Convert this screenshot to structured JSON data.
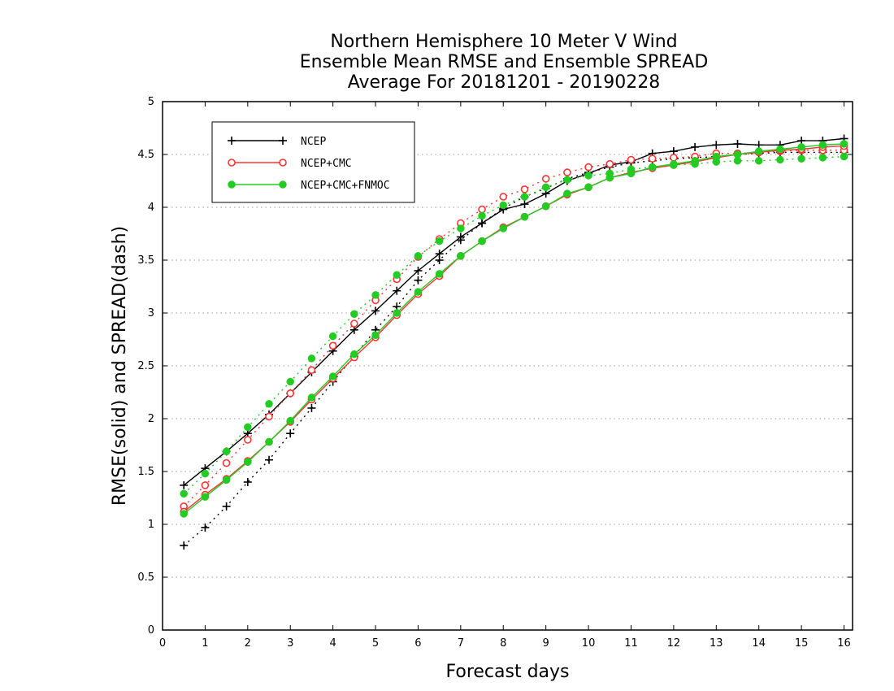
{
  "chart_data": {
    "type": "line",
    "title": [
      "Northern Hemisphere 10 Meter V Wind",
      "Ensemble Mean RMSE and Ensemble SPREAD",
      "Average For 20181201 - 20190228"
    ],
    "xlabel": "Forecast days",
    "ylabel": "RMSE(solid) and SPREAD(dash)",
    "xlim": [
      0,
      16.2
    ],
    "ylim": [
      0,
      5
    ],
    "xticks": [
      0,
      1,
      2,
      3,
      4,
      5,
      6,
      7,
      8,
      9,
      10,
      11,
      12,
      13,
      14,
      15,
      16
    ],
    "yticks": [
      0,
      0.5,
      1,
      1.5,
      2,
      2.5,
      3,
      3.5,
      4,
      4.5,
      5
    ],
    "ytick_labels": [
      "0",
      "0.5",
      "1",
      "1.5",
      "2",
      "2.5",
      "3",
      "3.5",
      "4",
      "4.5",
      "5"
    ],
    "grid": "horizontal dotted",
    "legend_position": "top-left",
    "x": [
      0.5,
      1,
      1.5,
      2,
      2.5,
      3,
      3.5,
      4,
      4.5,
      5,
      5.5,
      6,
      6.5,
      7,
      7.5,
      8,
      8.5,
      9,
      9.5,
      10,
      10.5,
      11,
      11.5,
      12,
      12.5,
      13,
      13.5,
      14,
      14.5,
      15,
      15.5,
      16
    ],
    "series": [
      {
        "name": "NCEP",
        "color": "#000000",
        "marker": "plus",
        "rmse": [
          1.37,
          1.53,
          1.69,
          1.86,
          2.04,
          2.24,
          2.44,
          2.64,
          2.84,
          3.02,
          3.21,
          3.4,
          3.56,
          3.72,
          3.85,
          3.98,
          4.03,
          4.13,
          4.25,
          4.32,
          4.4,
          4.43,
          4.51,
          4.53,
          4.57,
          4.59,
          4.6,
          4.59,
          4.59,
          4.63,
          4.63,
          4.65
        ],
        "spread": [
          0.8,
          0.97,
          1.17,
          1.4,
          1.61,
          1.86,
          2.1,
          2.35,
          2.59,
          2.84,
          3.06,
          3.31,
          3.5,
          3.69,
          3.85,
          3.99,
          4.1,
          4.18,
          4.27,
          4.33,
          4.38,
          4.42,
          4.44,
          4.46,
          4.47,
          4.48,
          4.5,
          4.51,
          4.52,
          4.52,
          4.52,
          4.52
        ]
      },
      {
        "name": "NCEP+CMC",
        "color": "#ff3333",
        "marker": "open-circle",
        "rmse": [
          1.12,
          1.28,
          1.43,
          1.6,
          1.78,
          1.97,
          2.18,
          2.38,
          2.58,
          2.77,
          2.98,
          3.18,
          3.35,
          3.54,
          3.68,
          3.81,
          3.91,
          4.01,
          4.12,
          4.19,
          4.28,
          4.33,
          4.37,
          4.4,
          4.43,
          4.47,
          4.5,
          4.52,
          4.54,
          4.55,
          4.57,
          4.58
        ],
        "spread": [
          1.17,
          1.37,
          1.58,
          1.8,
          2.02,
          2.24,
          2.46,
          2.69,
          2.9,
          3.12,
          3.32,
          3.53,
          3.7,
          3.85,
          3.98,
          4.1,
          4.17,
          4.27,
          4.33,
          4.38,
          4.41,
          4.45,
          4.46,
          4.47,
          4.48,
          4.51,
          4.51,
          4.52,
          4.53,
          4.54,
          4.54,
          4.54
        ]
      },
      {
        "name": "NCEP+CMC+FNMOC",
        "color": "#22cc22",
        "marker": "filled-circle",
        "rmse": [
          1.1,
          1.26,
          1.42,
          1.59,
          1.78,
          1.98,
          2.2,
          2.4,
          2.61,
          2.79,
          3.0,
          3.2,
          3.37,
          3.54,
          3.68,
          3.8,
          3.91,
          4.01,
          4.13,
          4.19,
          4.28,
          4.32,
          4.38,
          4.41,
          4.44,
          4.48,
          4.5,
          4.53,
          4.55,
          4.57,
          4.59,
          4.6
        ],
        "spread": [
          1.29,
          1.48,
          1.69,
          1.92,
          2.14,
          2.35,
          2.57,
          2.78,
          2.99,
          3.17,
          3.36,
          3.54,
          3.68,
          3.8,
          3.92,
          4.02,
          4.1,
          4.19,
          4.26,
          4.3,
          4.32,
          4.36,
          4.38,
          4.4,
          4.41,
          4.43,
          4.44,
          4.44,
          4.45,
          4.46,
          4.47,
          4.48
        ]
      }
    ]
  }
}
